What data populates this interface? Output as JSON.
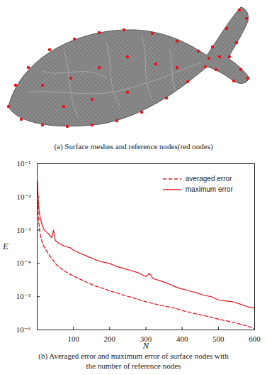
{
  "panel_a": {
    "caption": "(a) Surface meshes and reference nodes(red nodes)"
  },
  "chart_data": {
    "type": "line",
    "caption": "(b) Averaged error and maximum error of surface nodes with the number of reference nodes",
    "x_label": "N",
    "y_label": "E",
    "x": [
      1,
      2,
      3,
      5,
      8,
      10,
      15,
      20,
      30,
      40,
      45,
      50,
      60,
      70,
      80,
      90,
      100,
      120,
      140,
      160,
      180,
      200,
      220,
      240,
      260,
      280,
      300,
      310,
      320,
      340,
      360,
      380,
      400,
      420,
      440,
      460,
      480,
      500,
      520,
      540,
      560,
      580,
      600
    ],
    "series": [
      {
        "name": "averaged error",
        "color": "#e3151b",
        "line_style": "dashed",
        "values": [
          0.012,
          0.006,
          0.003,
          0.0015,
          0.0008,
          0.0006,
          0.0004,
          0.0003,
          0.0002,
          0.00014,
          0.00012,
          0.0001,
          8e-05,
          6.5e-05,
          5.5e-05,
          4.8e-05,
          4.2e-05,
          3.3e-05,
          2.6e-05,
          2.1e-05,
          1.8e-05,
          1.5e-05,
          1.3e-05,
          1.1e-05,
          9.5e-06,
          8.2e-06,
          7e-06,
          6.6e-06,
          6.2e-06,
          5.5e-06,
          5e-06,
          4.5e-06,
          3.8e-06,
          3.4e-06,
          3e-06,
          2.7e-06,
          2.4e-06,
          2.1e-06,
          1.9e-06,
          1.7e-06,
          1.5e-06,
          1.3e-06,
          1.1e-06
        ]
      },
      {
        "name": "maximum error",
        "color": "#e3151b",
        "line_style": "solid",
        "values": [
          0.03,
          0.015,
          0.008,
          0.004,
          0.0025,
          0.002,
          0.0013,
          0.001,
          0.0008,
          0.0006,
          0.001,
          0.0005,
          0.0004,
          0.00035,
          0.00032,
          0.0003,
          0.00025,
          0.0002,
          0.00016,
          0.00013,
          0.00011,
          0.0001,
          8e-05,
          7e-05,
          6e-05,
          5.2e-05,
          4e-05,
          5e-05,
          3.5e-05,
          3e-05,
          2.5e-05,
          2e-05,
          1.7e-05,
          1.5e-05,
          1.3e-05,
          1.1e-05,
          1e-05,
          8e-06,
          7.5e-06,
          7e-06,
          6e-06,
          5e-06,
          4.5e-06
        ]
      }
    ],
    "xlim": [
      0,
      600
    ],
    "xticks": [
      100,
      200,
      300,
      400,
      500,
      600
    ],
    "ylim": [
      1e-06,
      0.1
    ],
    "yticks": [
      {
        "value": 1e-06,
        "label": "10⁻⁶"
      },
      {
        "value": 1e-05,
        "label": "10⁻⁵"
      },
      {
        "value": 0.0001,
        "label": "10⁻⁴"
      },
      {
        "value": 0.001,
        "label": "10⁻³"
      },
      {
        "value": 0.01,
        "label": "10⁻²"
      },
      {
        "value": 0.1,
        "label": "10⁻¹"
      }
    ],
    "log": "y",
    "grid": false,
    "legend": "upper right"
  }
}
